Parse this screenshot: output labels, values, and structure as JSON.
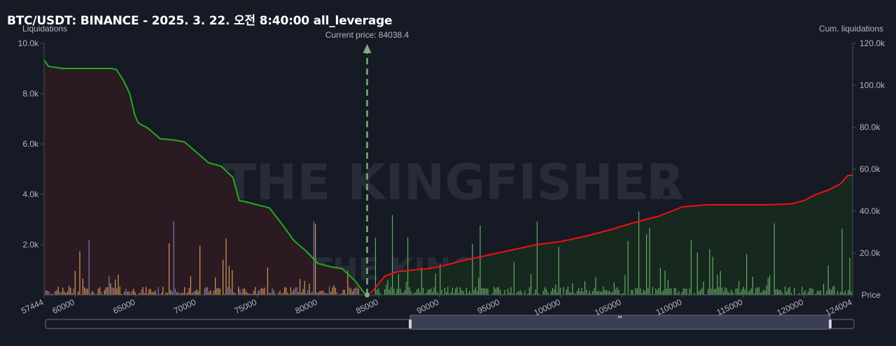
{
  "title": "BTC/USDT: BINANCE - 2025. 3. 22. 오전 8:40:00 all_leverage",
  "left_axis_label": "Liquidations",
  "right_axis_label": "Cum. liquidations",
  "x_axis_label": "Price",
  "current_price_label": "Current price: 84038.4",
  "watermark": {
    "main": "THE KINGFISHER",
    "suffix": ".io"
  },
  "colors": {
    "background": "#161a25",
    "short_fill": "#2b1a22",
    "long_fill": "#17281f",
    "cum_short_line": "#22aa22",
    "cum_long_line": "#ee1111",
    "current_price_line": "#6fa36f",
    "bar_orange": "#f2b25c",
    "bar_purple": "#8c8fd0",
    "bar_green": "#6ec66e"
  },
  "chart_data": {
    "type": "bar",
    "x_range": [
      57444,
      124004
    ],
    "x_ticks": [
      "57444",
      "60000",
      "65000",
      "70000",
      "75000",
      "80000",
      "85000",
      "90000",
      "95000",
      "100000",
      "105000",
      "110000",
      "115000",
      "120000",
      "124004"
    ],
    "y_left_ticks": [
      "2.0k",
      "4.0k",
      "6.0k",
      "8.0k",
      "10.0k"
    ],
    "y_left_range": [
      0,
      10000
    ],
    "y_right_ticks": [
      "20.0k",
      "40.0k",
      "60.0k",
      "80.0k",
      "100.0k",
      "120.0k"
    ],
    "y_right_range": [
      0,
      120000
    ],
    "current_price": 84038.4,
    "series": [
      {
        "kind": "cumulative",
        "points": [
          [
            57444,
            112000
          ],
          [
            57800,
            109000
          ],
          [
            59000,
            108000
          ],
          [
            60000,
            108000
          ],
          [
            63000,
            108000
          ],
          [
            63400,
            107500
          ],
          [
            64000,
            102000
          ],
          [
            64500,
            96000
          ],
          [
            64900,
            86000
          ],
          [
            65200,
            82000
          ],
          [
            66000,
            79500
          ],
          [
            67000,
            74500
          ],
          [
            68000,
            74000
          ],
          [
            69000,
            73000
          ],
          [
            70000,
            68000
          ],
          [
            71000,
            63000
          ],
          [
            72000,
            61500
          ],
          [
            73000,
            56000
          ],
          [
            73500,
            45000
          ],
          [
            74000,
            44500
          ],
          [
            75000,
            43000
          ],
          [
            76000,
            41500
          ],
          [
            77000,
            34000
          ],
          [
            78000,
            26000
          ],
          [
            79000,
            21000
          ],
          [
            80000,
            15000
          ],
          [
            81000,
            13500
          ],
          [
            82000,
            12500
          ],
          [
            83000,
            7000
          ],
          [
            83800,
            1000
          ],
          [
            84038,
            0
          ]
        ]
      },
      {
        "kind": "cumulative",
        "points": [
          [
            84038,
            0
          ],
          [
            84500,
            2000
          ],
          [
            85500,
            9000
          ],
          [
            86500,
            11000
          ],
          [
            88000,
            12000
          ],
          [
            89000,
            12500
          ],
          [
            90000,
            13500
          ],
          [
            92000,
            16500
          ],
          [
            94000,
            19000
          ],
          [
            96000,
            21500
          ],
          [
            98000,
            24000
          ],
          [
            100000,
            25500
          ],
          [
            102000,
            28000
          ],
          [
            104000,
            31000
          ],
          [
            106000,
            34500
          ],
          [
            108000,
            37500
          ],
          [
            110000,
            42000
          ],
          [
            112000,
            43000
          ],
          [
            114000,
            43000
          ],
          [
            116000,
            43000
          ],
          [
            117000,
            43000
          ],
          [
            119000,
            43500
          ],
          [
            120000,
            45000
          ],
          [
            121000,
            48000
          ],
          [
            122000,
            50000
          ],
          [
            123000,
            53000
          ],
          [
            123600,
            57000
          ],
          [
            124004,
            57000
          ]
        ]
      }
    ]
  }
}
